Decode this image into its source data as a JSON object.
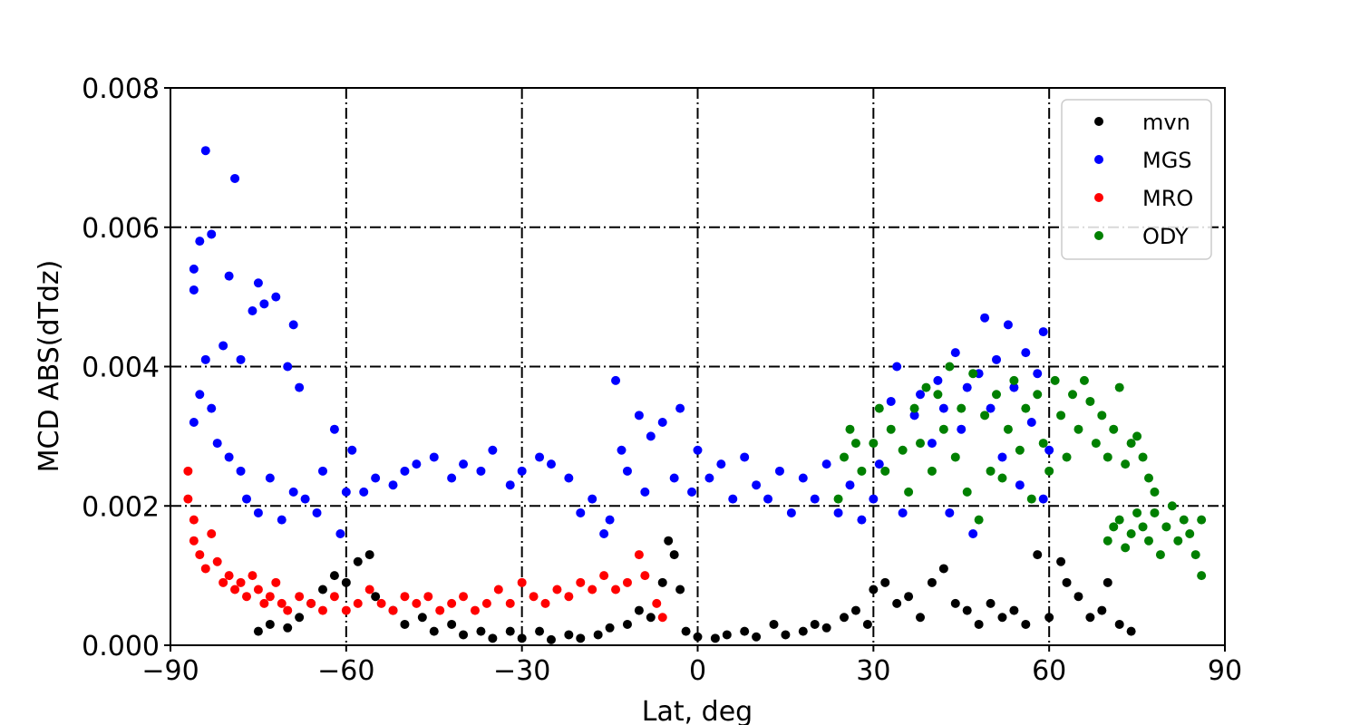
{
  "chart_data": {
    "type": "scatter",
    "title": "",
    "xlabel": "Lat, deg",
    "ylabel": "MCD ABS(dTdz)",
    "xlim": [
      -90,
      90
    ],
    "ylim": [
      0,
      0.008
    ],
    "x_ticks": [
      -90,
      -60,
      -30,
      0,
      30,
      60,
      90
    ],
    "x_tick_labels": [
      "−90",
      "−60",
      "−30",
      "0",
      "30",
      "60",
      "90"
    ],
    "y_ticks": [
      0,
      0.002,
      0.004,
      0.006,
      0.008
    ],
    "y_tick_labels": [
      "0.000",
      "0.002",
      "0.004",
      "0.006",
      "0.008"
    ],
    "grid": true,
    "legend_position": "top-right",
    "series": [
      {
        "name": "mvn",
        "color": "#000000",
        "points": [
          [
            -75,
            0.0002
          ],
          [
            -73,
            0.0003
          ],
          [
            -70,
            0.00025
          ],
          [
            -68,
            0.0004
          ],
          [
            -66,
            0.0006
          ],
          [
            -64,
            0.0008
          ],
          [
            -62,
            0.001
          ],
          [
            -60,
            0.0009
          ],
          [
            -58,
            0.0012
          ],
          [
            -56,
            0.0013
          ],
          [
            -55,
            0.0007
          ],
          [
            -52,
            0.0005
          ],
          [
            -50,
            0.0003
          ],
          [
            -47,
            0.0004
          ],
          [
            -45,
            0.0002
          ],
          [
            -42,
            0.0003
          ],
          [
            -40,
            0.00015
          ],
          [
            -37,
            0.0002
          ],
          [
            -35,
            0.0001
          ],
          [
            -32,
            0.0002
          ],
          [
            -30,
            0.0001
          ],
          [
            -27,
            0.0002
          ],
          [
            -25,
            8e-05
          ],
          [
            -22,
            0.00015
          ],
          [
            -20,
            0.0001
          ],
          [
            -17,
            0.00015
          ],
          [
            -15,
            0.00025
          ],
          [
            -12,
            0.0003
          ],
          [
            -10,
            0.0005
          ],
          [
            -8,
            0.0004
          ],
          [
            -6,
            0.0009
          ],
          [
            -5,
            0.0015
          ],
          [
            -4,
            0.0013
          ],
          [
            -3,
            0.0008
          ],
          [
            -2,
            0.0002
          ],
          [
            0,
            0.00012
          ],
          [
            3,
            0.0001
          ],
          [
            5,
            0.00015
          ],
          [
            8,
            0.0002
          ],
          [
            10,
            0.00012
          ],
          [
            13,
            0.0003
          ],
          [
            15,
            0.00015
          ],
          [
            18,
            0.0002
          ],
          [
            20,
            0.0003
          ],
          [
            22,
            0.00025
          ],
          [
            25,
            0.0004
          ],
          [
            27,
            0.0005
          ],
          [
            29,
            0.0003
          ],
          [
            30,
            0.0008
          ],
          [
            32,
            0.0009
          ],
          [
            34,
            0.0006
          ],
          [
            36,
            0.0007
          ],
          [
            38,
            0.0004
          ],
          [
            40,
            0.0009
          ],
          [
            42,
            0.0011
          ],
          [
            44,
            0.0006
          ],
          [
            46,
            0.0005
          ],
          [
            48,
            0.0003
          ],
          [
            50,
            0.0006
          ],
          [
            52,
            0.0004
          ],
          [
            54,
            0.0005
          ],
          [
            56,
            0.0003
          ],
          [
            58,
            0.0013
          ],
          [
            60,
            0.0004
          ],
          [
            62,
            0.0012
          ],
          [
            63,
            0.0009
          ],
          [
            65,
            0.0007
          ],
          [
            67,
            0.0004
          ],
          [
            69,
            0.0005
          ],
          [
            70,
            0.0009
          ],
          [
            72,
            0.0003
          ],
          [
            74,
            0.0002
          ]
        ]
      },
      {
        "name": "MGS",
        "color": "#0000ff",
        "points": [
          [
            -86,
            0.0054
          ],
          [
            -86,
            0.0051
          ],
          [
            -85,
            0.0058
          ],
          [
            -84,
            0.0071
          ],
          [
            -83,
            0.0059
          ],
          [
            -81,
            0.0043
          ],
          [
            -80,
            0.0053
          ],
          [
            -79,
            0.0067
          ],
          [
            -78,
            0.0041
          ],
          [
            -76,
            0.0048
          ],
          [
            -75,
            0.0052
          ],
          [
            -74,
            0.0049
          ],
          [
            -72,
            0.005
          ],
          [
            -70,
            0.004
          ],
          [
            -69,
            0.0046
          ],
          [
            -68,
            0.0037
          ],
          [
            -86,
            0.0032
          ],
          [
            -85,
            0.0036
          ],
          [
            -84,
            0.0041
          ],
          [
            -83,
            0.0034
          ],
          [
            -82,
            0.0029
          ],
          [
            -80,
            0.0027
          ],
          [
            -78,
            0.0025
          ],
          [
            -77,
            0.0021
          ],
          [
            -75,
            0.0019
          ],
          [
            -73,
            0.0024
          ],
          [
            -71,
            0.0018
          ],
          [
            -69,
            0.0022
          ],
          [
            -67,
            0.0021
          ],
          [
            -65,
            0.0019
          ],
          [
            -64,
            0.0025
          ],
          [
            -62,
            0.0031
          ],
          [
            -61,
            0.0016
          ],
          [
            -60,
            0.0022
          ],
          [
            -59,
            0.0028
          ],
          [
            -57,
            0.0022
          ],
          [
            -55,
            0.0024
          ],
          [
            -52,
            0.0023
          ],
          [
            -50,
            0.0025
          ],
          [
            -48,
            0.0026
          ],
          [
            -45,
            0.0027
          ],
          [
            -42,
            0.0024
          ],
          [
            -40,
            0.0026
          ],
          [
            -37,
            0.0025
          ],
          [
            -35,
            0.0028
          ],
          [
            -32,
            0.0023
          ],
          [
            -30,
            0.0025
          ],
          [
            -27,
            0.0027
          ],
          [
            -25,
            0.0026
          ],
          [
            -22,
            0.0024
          ],
          [
            -20,
            0.0019
          ],
          [
            -18,
            0.0021
          ],
          [
            -16,
            0.0016
          ],
          [
            -15,
            0.0018
          ],
          [
            -14,
            0.0038
          ],
          [
            -13,
            0.0028
          ],
          [
            -12,
            0.0025
          ],
          [
            -10,
            0.0033
          ],
          [
            -9,
            0.0022
          ],
          [
            -8,
            0.003
          ],
          [
            -6,
            0.0032
          ],
          [
            -4,
            0.0024
          ],
          [
            -3,
            0.0034
          ],
          [
            -1,
            0.0022
          ],
          [
            0,
            0.0028
          ],
          [
            2,
            0.0024
          ],
          [
            4,
            0.0026
          ],
          [
            6,
            0.0021
          ],
          [
            8,
            0.0027
          ],
          [
            10,
            0.0023
          ],
          [
            12,
            0.0021
          ],
          [
            14,
            0.0025
          ],
          [
            16,
            0.0019
          ],
          [
            18,
            0.0024
          ],
          [
            20,
            0.0021
          ],
          [
            22,
            0.0026
          ],
          [
            24,
            0.0019
          ],
          [
            26,
            0.0023
          ],
          [
            28,
            0.0018
          ],
          [
            30,
            0.0021
          ],
          [
            31,
            0.0026
          ],
          [
            33,
            0.0035
          ],
          [
            34,
            0.004
          ],
          [
            35,
            0.0019
          ],
          [
            37,
            0.0033
          ],
          [
            38,
            0.0036
          ],
          [
            40,
            0.0029
          ],
          [
            41,
            0.0038
          ],
          [
            42,
            0.0034
          ],
          [
            43,
            0.0019
          ],
          [
            44,
            0.0042
          ],
          [
            45,
            0.0031
          ],
          [
            46,
            0.0037
          ],
          [
            47,
            0.0016
          ],
          [
            48,
            0.0039
          ],
          [
            49,
            0.0047
          ],
          [
            50,
            0.0034
          ],
          [
            51,
            0.0041
          ],
          [
            52,
            0.0027
          ],
          [
            53,
            0.0046
          ],
          [
            54,
            0.0037
          ],
          [
            55,
            0.0023
          ],
          [
            56,
            0.0042
          ],
          [
            57,
            0.0032
          ],
          [
            58,
            0.0039
          ],
          [
            59,
            0.0045
          ],
          [
            59,
            0.0021
          ],
          [
            60,
            0.0028
          ]
        ]
      },
      {
        "name": "MRO",
        "color": "#ff0000",
        "points": [
          [
            -87,
            0.0025
          ],
          [
            -87,
            0.0021
          ],
          [
            -86,
            0.0018
          ],
          [
            -86,
            0.0015
          ],
          [
            -85,
            0.0013
          ],
          [
            -84,
            0.0011
          ],
          [
            -83,
            0.0016
          ],
          [
            -82,
            0.0012
          ],
          [
            -81,
            0.0009
          ],
          [
            -80,
            0.001
          ],
          [
            -79,
            0.0008
          ],
          [
            -78,
            0.0009
          ],
          [
            -77,
            0.0007
          ],
          [
            -76,
            0.001
          ],
          [
            -75,
            0.0008
          ],
          [
            -74,
            0.0006
          ],
          [
            -73,
            0.0007
          ],
          [
            -72,
            0.0009
          ],
          [
            -71,
            0.0006
          ],
          [
            -70,
            0.0005
          ],
          [
            -68,
            0.0007
          ],
          [
            -66,
            0.0006
          ],
          [
            -64,
            0.0005
          ],
          [
            -62,
            0.0007
          ],
          [
            -60,
            0.0005
          ],
          [
            -58,
            0.0006
          ],
          [
            -56,
            0.0008
          ],
          [
            -54,
            0.0006
          ],
          [
            -52,
            0.0005
          ],
          [
            -50,
            0.0007
          ],
          [
            -48,
            0.0006
          ],
          [
            -46,
            0.0007
          ],
          [
            -44,
            0.0005
          ],
          [
            -42,
            0.0006
          ],
          [
            -40,
            0.0007
          ],
          [
            -38,
            0.0005
          ],
          [
            -36,
            0.0006
          ],
          [
            -34,
            0.0008
          ],
          [
            -32,
            0.0006
          ],
          [
            -30,
            0.0009
          ],
          [
            -28,
            0.0007
          ],
          [
            -26,
            0.0006
          ],
          [
            -24,
            0.0008
          ],
          [
            -22,
            0.0007
          ],
          [
            -20,
            0.0009
          ],
          [
            -18,
            0.0008
          ],
          [
            -16,
            0.001
          ],
          [
            -14,
            0.0008
          ],
          [
            -12,
            0.0009
          ],
          [
            -10,
            0.0013
          ],
          [
            -9,
            0.001
          ],
          [
            -7,
            0.0006
          ],
          [
            -6,
            0.0004
          ]
        ]
      },
      {
        "name": "ODY",
        "color": "#008000",
        "points": [
          [
            24,
            0.0021
          ],
          [
            25,
            0.0027
          ],
          [
            26,
            0.0031
          ],
          [
            27,
            0.0029
          ],
          [
            28,
            0.0025
          ],
          [
            30,
            0.0029
          ],
          [
            31,
            0.0034
          ],
          [
            32,
            0.0025
          ],
          [
            33,
            0.0031
          ],
          [
            35,
            0.0028
          ],
          [
            36,
            0.0022
          ],
          [
            37,
            0.0034
          ],
          [
            38,
            0.0029
          ],
          [
            39,
            0.0037
          ],
          [
            40,
            0.0025
          ],
          [
            41,
            0.0036
          ],
          [
            42,
            0.0031
          ],
          [
            43,
            0.004
          ],
          [
            44,
            0.0027
          ],
          [
            45,
            0.0034
          ],
          [
            46,
            0.0022
          ],
          [
            47,
            0.0039
          ],
          [
            48,
            0.0018
          ],
          [
            49,
            0.0033
          ],
          [
            50,
            0.0025
          ],
          [
            51,
            0.0036
          ],
          [
            52,
            0.0024
          ],
          [
            53,
            0.0031
          ],
          [
            54,
            0.0038
          ],
          [
            55,
            0.0028
          ],
          [
            56,
            0.0034
          ],
          [
            57,
            0.0021
          ],
          [
            58,
            0.0036
          ],
          [
            59,
            0.0029
          ],
          [
            60,
            0.0025
          ],
          [
            61,
            0.0038
          ],
          [
            62,
            0.0033
          ],
          [
            63,
            0.0027
          ],
          [
            64,
            0.0036
          ],
          [
            65,
            0.0031
          ],
          [
            66,
            0.0038
          ],
          [
            67,
            0.0035
          ],
          [
            68,
            0.0029
          ],
          [
            69,
            0.0033
          ],
          [
            70,
            0.0027
          ],
          [
            71,
            0.0031
          ],
          [
            72,
            0.0037
          ],
          [
            73,
            0.0026
          ],
          [
            74,
            0.0029
          ],
          [
            75,
            0.003
          ],
          [
            76,
            0.0027
          ],
          [
            77,
            0.0024
          ],
          [
            78,
            0.0022
          ],
          [
            70,
            0.0015
          ],
          [
            71,
            0.0017
          ],
          [
            72,
            0.0018
          ],
          [
            73,
            0.0014
          ],
          [
            74,
            0.0016
          ],
          [
            75,
            0.0019
          ],
          [
            76,
            0.0017
          ],
          [
            77,
            0.0015
          ],
          [
            78,
            0.0019
          ],
          [
            79,
            0.0013
          ],
          [
            80,
            0.0017
          ],
          [
            81,
            0.002
          ],
          [
            82,
            0.0015
          ],
          [
            83,
            0.0018
          ],
          [
            84,
            0.0016
          ],
          [
            85,
            0.0013
          ],
          [
            86,
            0.001
          ],
          [
            86,
            0.0018
          ]
        ]
      }
    ]
  }
}
